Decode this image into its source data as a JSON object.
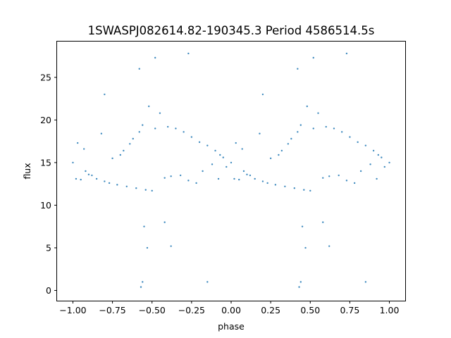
{
  "chart_data": {
    "type": "scatter",
    "title": "1SWASPJ082614.82-190345.3 Period 4586514.5s",
    "xlabel": "phase",
    "ylabel": "flux",
    "xlim": [
      -1.1,
      1.1
    ],
    "ylim": [
      -1.2,
      29.2
    ],
    "xticks": [
      -1.0,
      -0.75,
      -0.5,
      -0.25,
      0.0,
      0.25,
      0.5,
      0.75,
      1.0
    ],
    "xtick_labels": [
      "−1.00",
      "−0.75",
      "−0.50",
      "−0.25",
      "0.00",
      "0.25",
      "0.50",
      "0.75",
      "1.00"
    ],
    "yticks": [
      0,
      5,
      10,
      15,
      20,
      25
    ],
    "ytick_labels": [
      "0",
      "5",
      "10",
      "15",
      "20",
      "25"
    ],
    "grid": false,
    "legend": "none",
    "marker_color": "#1f77b4",
    "series": [
      {
        "values": [
          {
            "x": -1.0,
            "y": 15.0
          },
          {
            "x": -0.98,
            "y": 13.1
          },
          {
            "x": -0.97,
            "y": 17.3
          },
          {
            "x": -0.95,
            "y": 13.0
          },
          {
            "x": -0.93,
            "y": 16.6
          },
          {
            "x": -0.92,
            "y": 14.0
          },
          {
            "x": -0.9,
            "y": 13.6
          },
          {
            "x": -0.88,
            "y": 13.5
          },
          {
            "x": -0.85,
            "y": 13.1
          },
          {
            "x": -0.82,
            "y": 18.4
          },
          {
            "x": -0.8,
            "y": 12.8
          },
          {
            "x": -0.77,
            "y": 12.6
          },
          {
            "x": -0.75,
            "y": 15.5
          },
          {
            "x": -0.72,
            "y": 12.4
          },
          {
            "x": -0.7,
            "y": 15.9
          },
          {
            "x": -0.68,
            "y": 16.4
          },
          {
            "x": -0.66,
            "y": 12.2
          },
          {
            "x": -0.64,
            "y": 17.2
          },
          {
            "x": -0.62,
            "y": 17.8
          },
          {
            "x": -0.6,
            "y": 12.0
          },
          {
            "x": -0.58,
            "y": 18.6
          },
          {
            "x": -0.56,
            "y": 19.4
          },
          {
            "x": -0.54,
            "y": 11.8
          },
          {
            "x": -0.52,
            "y": 21.6
          },
          {
            "x": -0.5,
            "y": 11.7
          },
          {
            "x": -0.48,
            "y": 19.0
          },
          {
            "x": -0.45,
            "y": 20.8
          },
          {
            "x": -0.42,
            "y": 13.2
          },
          {
            "x": -0.4,
            "y": 19.2
          },
          {
            "x": -0.38,
            "y": 13.4
          },
          {
            "x": -0.35,
            "y": 19.0
          },
          {
            "x": -0.32,
            "y": 13.5
          },
          {
            "x": -0.3,
            "y": 18.6
          },
          {
            "x": -0.27,
            "y": 12.9
          },
          {
            "x": -0.25,
            "y": 18.0
          },
          {
            "x": -0.22,
            "y": 12.6
          },
          {
            "x": -0.2,
            "y": 17.4
          },
          {
            "x": -0.18,
            "y": 14.0
          },
          {
            "x": -0.15,
            "y": 17.0
          },
          {
            "x": -0.12,
            "y": 14.8
          },
          {
            "x": -0.1,
            "y": 16.4
          },
          {
            "x": -0.08,
            "y": 13.1
          },
          {
            "x": -0.07,
            "y": 15.9
          },
          {
            "x": -0.05,
            "y": 15.6
          },
          {
            "x": -0.03,
            "y": 14.5
          },
          {
            "x": 0.0,
            "y": 15.0
          },
          {
            "x": 0.02,
            "y": 13.1
          },
          {
            "x": 0.03,
            "y": 17.3
          },
          {
            "x": 0.05,
            "y": 13.0
          },
          {
            "x": 0.07,
            "y": 16.6
          },
          {
            "x": 0.08,
            "y": 14.0
          },
          {
            "x": 0.1,
            "y": 13.6
          },
          {
            "x": 0.12,
            "y": 13.5
          },
          {
            "x": 0.15,
            "y": 13.1
          },
          {
            "x": 0.18,
            "y": 18.4
          },
          {
            "x": 0.2,
            "y": 12.8
          },
          {
            "x": 0.23,
            "y": 12.6
          },
          {
            "x": 0.25,
            "y": 15.5
          },
          {
            "x": 0.28,
            "y": 12.4
          },
          {
            "x": 0.3,
            "y": 15.9
          },
          {
            "x": 0.32,
            "y": 16.4
          },
          {
            "x": 0.34,
            "y": 12.2
          },
          {
            "x": 0.36,
            "y": 17.2
          },
          {
            "x": 0.38,
            "y": 17.8
          },
          {
            "x": 0.4,
            "y": 12.0
          },
          {
            "x": 0.42,
            "y": 18.6
          },
          {
            "x": 0.44,
            "y": 19.4
          },
          {
            "x": 0.46,
            "y": 11.8
          },
          {
            "x": 0.48,
            "y": 21.6
          },
          {
            "x": 0.5,
            "y": 11.7
          },
          {
            "x": 0.52,
            "y": 19.0
          },
          {
            "x": 0.55,
            "y": 20.8
          },
          {
            "x": 0.58,
            "y": 13.2
          },
          {
            "x": 0.6,
            "y": 19.2
          },
          {
            "x": 0.62,
            "y": 13.4
          },
          {
            "x": 0.65,
            "y": 19.0
          },
          {
            "x": 0.68,
            "y": 13.5
          },
          {
            "x": 0.7,
            "y": 18.6
          },
          {
            "x": 0.73,
            "y": 12.9
          },
          {
            "x": 0.75,
            "y": 18.0
          },
          {
            "x": 0.78,
            "y": 12.6
          },
          {
            "x": 0.8,
            "y": 17.4
          },
          {
            "x": 0.82,
            "y": 14.0
          },
          {
            "x": 0.85,
            "y": 17.0
          },
          {
            "x": 0.88,
            "y": 14.8
          },
          {
            "x": 0.9,
            "y": 16.4
          },
          {
            "x": 0.92,
            "y": 13.1
          },
          {
            "x": 0.93,
            "y": 15.9
          },
          {
            "x": 0.95,
            "y": 15.6
          },
          {
            "x": 0.97,
            "y": 14.5
          },
          {
            "x": 1.0,
            "y": 15.0
          },
          {
            "x": -0.55,
            "y": 7.5
          },
          {
            "x": -0.56,
            "y": 1.0
          },
          {
            "x": -0.53,
            "y": 5.0
          },
          {
            "x": -0.48,
            "y": 27.3
          },
          {
            "x": -0.58,
            "y": 26.0
          },
          {
            "x": -0.27,
            "y": 27.8
          },
          {
            "x": -0.8,
            "y": 23.0
          },
          {
            "x": -0.15,
            "y": 1.0
          },
          {
            "x": -0.42,
            "y": 8.0
          },
          {
            "x": -0.57,
            "y": 0.4
          },
          {
            "x": -0.38,
            "y": 5.2
          },
          {
            "x": 0.45,
            "y": 7.5
          },
          {
            "x": 0.44,
            "y": 1.0
          },
          {
            "x": 0.47,
            "y": 5.0
          },
          {
            "x": 0.52,
            "y": 27.3
          },
          {
            "x": 0.42,
            "y": 26.0
          },
          {
            "x": 0.73,
            "y": 27.8
          },
          {
            "x": 0.2,
            "y": 23.0
          },
          {
            "x": 0.85,
            "y": 1.0
          },
          {
            "x": 0.58,
            "y": 8.0
          },
          {
            "x": 0.43,
            "y": 0.4
          },
          {
            "x": 0.62,
            "y": 5.2
          }
        ]
      }
    ]
  }
}
